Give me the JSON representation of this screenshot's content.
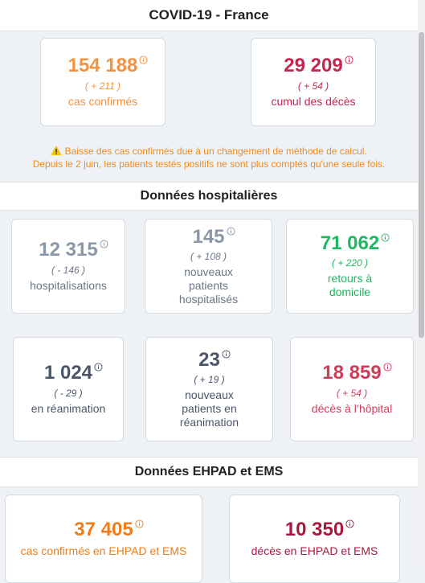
{
  "header": {
    "title": "COVID-19 - France"
  },
  "summary": [
    {
      "value": "154 188",
      "delta": "( + 211 )",
      "label": "cas confirmés"
    },
    {
      "value": "29 209",
      "delta": "( + 54 )",
      "label": "cumul des décès"
    }
  ],
  "warning": {
    "lines": [
      "Baisse des cas confirmés due à un changement de méthode de calcul.",
      "Depuis le 2 juin, les patients testés positifs ne sont plus comptés qu'une seule fois."
    ]
  },
  "hospital": {
    "title": "Données hospitalières",
    "cards": [
      {
        "value": "12 315",
        "delta": "( - 146 )",
        "label": "hospitalisations"
      },
      {
        "value": "145",
        "delta": "( + 108 )",
        "label": "nouveaux patients hospitalisés"
      },
      {
        "value": "71 062",
        "delta": "( + 220 )",
        "label": "retours à domicile"
      },
      {
        "value": "1 024",
        "delta": "( - 29 )",
        "label": "en réanimation"
      },
      {
        "value": "23",
        "delta": "( + 19 )",
        "label": "nouveaux patients en réanimation"
      },
      {
        "value": "18 859",
        "delta": "( + 54 )",
        "label": "décès à l’hôpital"
      }
    ]
  },
  "ehpad": {
    "title": "Données EHPAD et EMS",
    "cards": [
      {
        "value": "37 405",
        "label": "cas confirmés en EHPAD et EMS"
      },
      {
        "value": "10 350",
        "label": "décès en EHPAD et EMS"
      }
    ]
  }
}
